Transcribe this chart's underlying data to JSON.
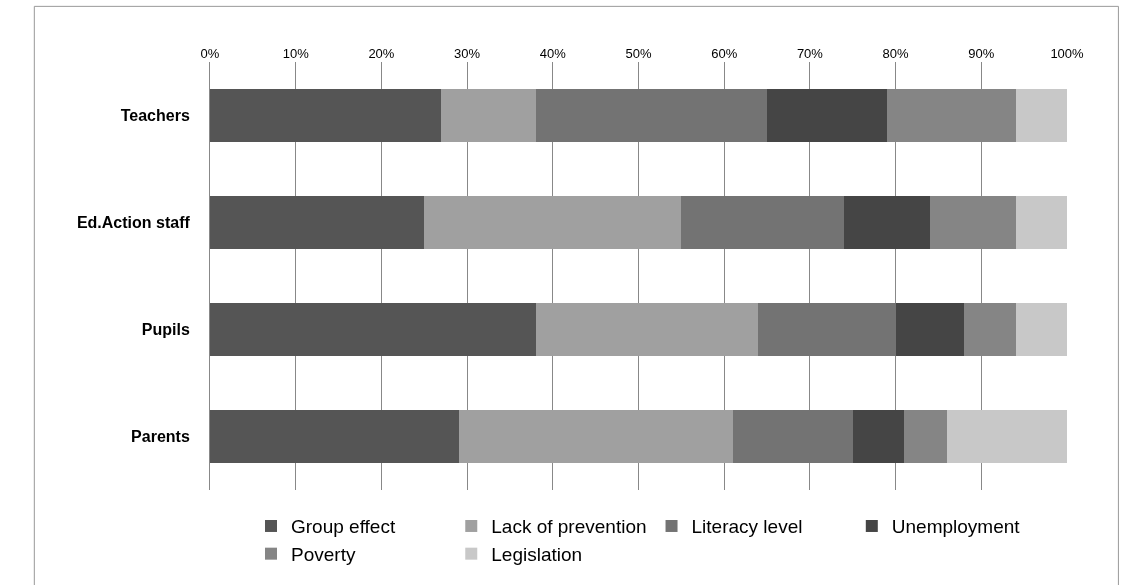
{
  "chart_data": {
    "type": "bar",
    "orientation": "horizontal",
    "stacked": true,
    "categories": [
      "Teachers",
      "Ed.Action staff",
      "Pupils",
      "Parents"
    ],
    "series": [
      {
        "name": "Group effect",
        "color": "#555555",
        "values": [
          27,
          25,
          38,
          29
        ]
      },
      {
        "name": "Lack of prevention",
        "color": "#a0a0a0",
        "values": [
          11,
          30,
          26,
          32
        ]
      },
      {
        "name": "Literacy level",
        "color": "#737373",
        "values": [
          27,
          19,
          16,
          14
        ]
      },
      {
        "name": "Unemployment",
        "color": "#454545",
        "values": [
          14,
          10,
          8,
          6
        ]
      },
      {
        "name": "Poverty",
        "color": "#858585",
        "values": [
          15,
          10,
          6,
          5
        ]
      },
      {
        "name": "Legislation",
        "color": "#c8c8c8",
        "values": [
          6,
          6,
          6,
          14
        ]
      }
    ],
    "xlim": [
      0,
      100
    ],
    "xticks": [
      {
        "value": 0,
        "label": "0%"
      },
      {
        "value": 10,
        "label": "10%"
      },
      {
        "value": 20,
        "label": "20%"
      },
      {
        "value": 30,
        "label": "30%"
      },
      {
        "value": 40,
        "label": "40%"
      },
      {
        "value": 50,
        "label": "50%"
      },
      {
        "value": 60,
        "label": "60%"
      },
      {
        "value": 70,
        "label": "70%"
      },
      {
        "value": 80,
        "label": "80%"
      },
      {
        "value": 90,
        "label": "90%"
      },
      {
        "value": 100,
        "label": "100%"
      }
    ],
    "grid": "x",
    "legend": "bottom"
  }
}
